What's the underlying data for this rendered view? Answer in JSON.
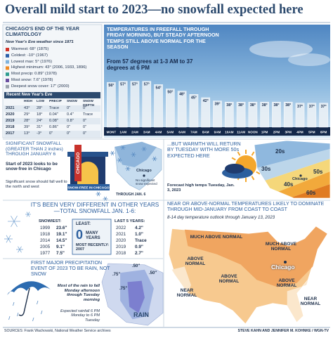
{
  "header": {
    "title": "Overall mild start to 2023—no snowfall expected here"
  },
  "climatology": {
    "title": "CHICAGO'S END OF THE YEAR CLIMATOLOGY",
    "subtitle": "New Year's Eve weather since 1871",
    "records": [
      {
        "text": "Warmest: 68° (1875)",
        "color": "#d2352b"
      },
      {
        "text": "Coldest: -10° (1967)",
        "color": "#2a5ea8"
      },
      {
        "text": "Lowest max: 5° (1976)",
        "color": "#7fb3dd"
      },
      {
        "text": "Highest minimum: 43° (2006, 1933, 1896)",
        "color": "#f08a24"
      },
      {
        "text": "Most precip: 0.89\" (1978)",
        "color": "#2f9c8f"
      },
      {
        "text": "Most snow: 7.6\" (1978)",
        "color": "#6b4fa0"
      },
      {
        "text": "Deepest snow cover: 17\" (2000)",
        "color": "#9aa3ad"
      }
    ],
    "recent": {
      "title": "Recent New Year's Eve",
      "columns": [
        "HIGH",
        "LOW",
        "PRECIP",
        "SNOW",
        "SNOW DEPTH"
      ],
      "rows": [
        [
          "2021",
          "43°",
          "28°",
          "Trace",
          "0\"",
          "0\""
        ],
        [
          "2020",
          "29°",
          "18°",
          "0.04\"",
          "0.4\"",
          "Trace"
        ],
        [
          "2019",
          "28°",
          "24°",
          "0.08\"",
          "0.8\"",
          "0\""
        ],
        [
          "2018",
          "39°",
          "31°",
          "0.86\"",
          "0\"",
          "0\""
        ],
        [
          "2017",
          "13°",
          "-3°",
          "0\"",
          "0\"",
          "0\""
        ]
      ]
    }
  },
  "chart_data": {
    "type": "bar",
    "title": "TEMPERATURES IN FREEFALL THROUGH FRIDAY MORNING, BUT STEADY AFTERNOON TEMPS STILL ABOVE NORMAL FOR THE SEASON",
    "subtitle": "From 57 degrees at 1-3 AM to 37 degrees at 6 PM",
    "categories": [
      "MONT",
      "1AM",
      "2AM",
      "3AM",
      "4AM",
      "5AM",
      "6AM",
      "7AM",
      "8AM",
      "9AM",
      "10AM",
      "11AM",
      "NOON",
      "1PM",
      "2PM",
      "3PM",
      "4PM",
      "5PM",
      "6PM"
    ],
    "values": [
      56,
      57,
      57,
      57,
      54,
      50,
      48,
      45,
      42,
      39,
      38,
      38,
      38,
      38,
      38,
      38,
      37,
      37,
      37
    ],
    "value_labels": [
      "56°",
      "57°",
      "57°",
      "57°",
      "54°",
      "50°",
      "48°",
      "45°",
      "42°",
      "39°",
      "38°",
      "38°",
      "38°",
      "38°",
      "38°",
      "38°",
      "37°",
      "37°",
      "37°"
    ],
    "ylim": [
      15,
      60
    ],
    "color": "#eef3f7"
  },
  "snowfall": {
    "title": "SIGNIFICANT SNOWFALL (GREATER THAN 2 inches) THROUGH JANUARY 6",
    "lead": "Start of 2023 looks to be snow-free in Chicago",
    "note": "Significant snow should fall well to the north and west",
    "sign": "CHICAGO",
    "banner": "SNOW-FREE IN CHICAGO",
    "map_caption": "THROUGH JAN. 6",
    "map_note": "No significant snow expected",
    "city": "Chicago"
  },
  "warmth": {
    "title": "...BUT WARMTH WILL RETURN BY TUESDAY WITH MORE 50s EXPECTED HERE",
    "caption": "Forecast high temps Tuesday, Jan. 3, 2023",
    "bands": [
      "20s",
      "30s",
      "40s",
      "50s",
      "60s"
    ],
    "city": "Chicago"
  },
  "history": {
    "title": "IT'S BEEN VERY DIFFERENT IN OTHER YEARS—TOTAL SNOWFALL JAN. 1-6:",
    "snowiest": {
      "label": "SNOWIEST:",
      "rows": [
        [
          "1999",
          "23.6\""
        ],
        [
          "1918",
          "19.1\""
        ],
        [
          "2014",
          "14.5\""
        ],
        [
          "2005",
          "9.1\""
        ],
        [
          "1977",
          "7.5\""
        ]
      ]
    },
    "least": {
      "label": "LEAST:",
      "value": "0",
      "unit": "MANY YEARS",
      "recent": "MOST RECENTLY: 2007"
    },
    "last5": {
      "label": "LAST 5 YEARS:",
      "rows": [
        [
          "2022",
          "4.2\""
        ],
        [
          "2021",
          "1.0\""
        ],
        [
          "2020",
          "Trace"
        ],
        [
          "2019",
          "0.9\""
        ],
        [
          "2018",
          "2.7\""
        ]
      ]
    }
  },
  "rain": {
    "title": "FIRST MAJOR PRECIPITATION EVENT OF 2023 TO BE RAIN, NOT SNOW",
    "note": "Most of the rain to fall Monday afternoon through Tuesday morning",
    "caption": "Expected rainfall 6 PM Monday to 6 PM Tuesday",
    "contours": [
      ".50\"",
      ".50\"",
      ".75\"",
      ".75\""
    ],
    "label": "RAIN"
  },
  "outlook": {
    "title": "NEAR OR ABOVE-NORMAL TEMPERATURES LIKELY TO DOMINATE THROUGH MID-JANUARY FROM COAST TO COAST",
    "subtitle": "8-14 day temperature outlook through January 13, 2023",
    "labels": [
      "MUCH ABOVE NORMAL",
      "ABOVE NORMAL",
      "MUCH ABOVE NORMAL",
      "ABOVE NORMAL",
      "ABOVE NORMAL",
      "NEAR NORMAL",
      "NEAR NORMAL"
    ],
    "city": "Chicago"
  },
  "footer": {
    "sources": "SOURCES: Frank Wachowski, National Weather Service archives",
    "credit": "STEVE KAHN AND JENNIFER M. KOHNKE / WGN-TV"
  }
}
